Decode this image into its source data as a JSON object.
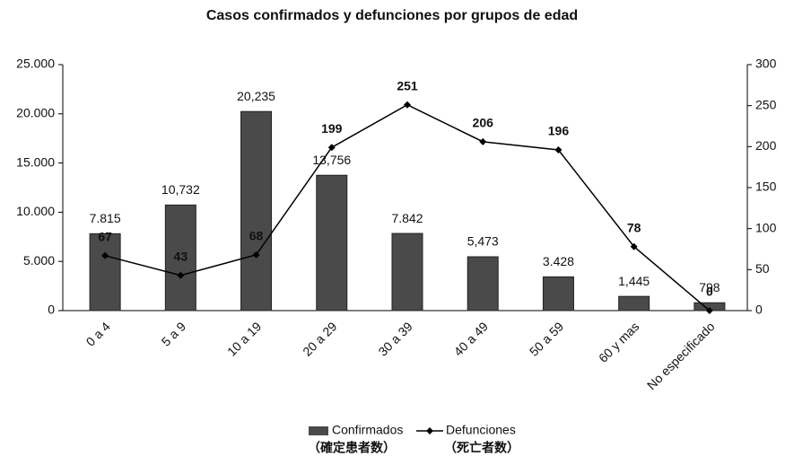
{
  "chart_data": {
    "type": "bar_line",
    "title": "Casos confirmados y defunciones por grupos de edad",
    "categories": [
      "0 a 4",
      "5 a 9",
      "10 a 19",
      "20 a 29",
      "30 a 39",
      "40 a 49",
      "50 a 59",
      "60 y mas",
      "No especificado"
    ],
    "series": [
      {
        "name": "Confirmados",
        "type": "bar",
        "color": "#4a4a4a",
        "values": [
          7815,
          10732,
          20235,
          13756,
          7842,
          5473,
          3428,
          1445,
          798
        ],
        "value_labels": [
          "7.815",
          "10,732",
          "20,235",
          "13,756",
          "7.842",
          "5,473",
          "3.428",
          "1,445",
          "798"
        ]
      },
      {
        "name": "Defunciones",
        "type": "line",
        "axis": "y2",
        "color": "#000000",
        "values": [
          67,
          43,
          68,
          199,
          251,
          206,
          196,
          78,
          0
        ]
      }
    ],
    "legend_notes": [
      "（確定患者数）",
      "（死亡者数）"
    ],
    "ylim": [
      0,
      25000
    ],
    "yticks": [
      0,
      {
        "value": 5000,
        "label": "5.000"
      },
      {
        "value": 10000,
        "label": "10.000"
      },
      {
        "value": 15000,
        "label": "15.000"
      },
      {
        "value": 20000,
        "label": "20.000"
      },
      {
        "value": 25000,
        "label": "25.000"
      }
    ],
    "y2lim": [
      0,
      300
    ],
    "y2ticks": [
      0,
      50,
      100,
      150,
      200,
      250,
      300
    ],
    "legend": "bottom"
  }
}
